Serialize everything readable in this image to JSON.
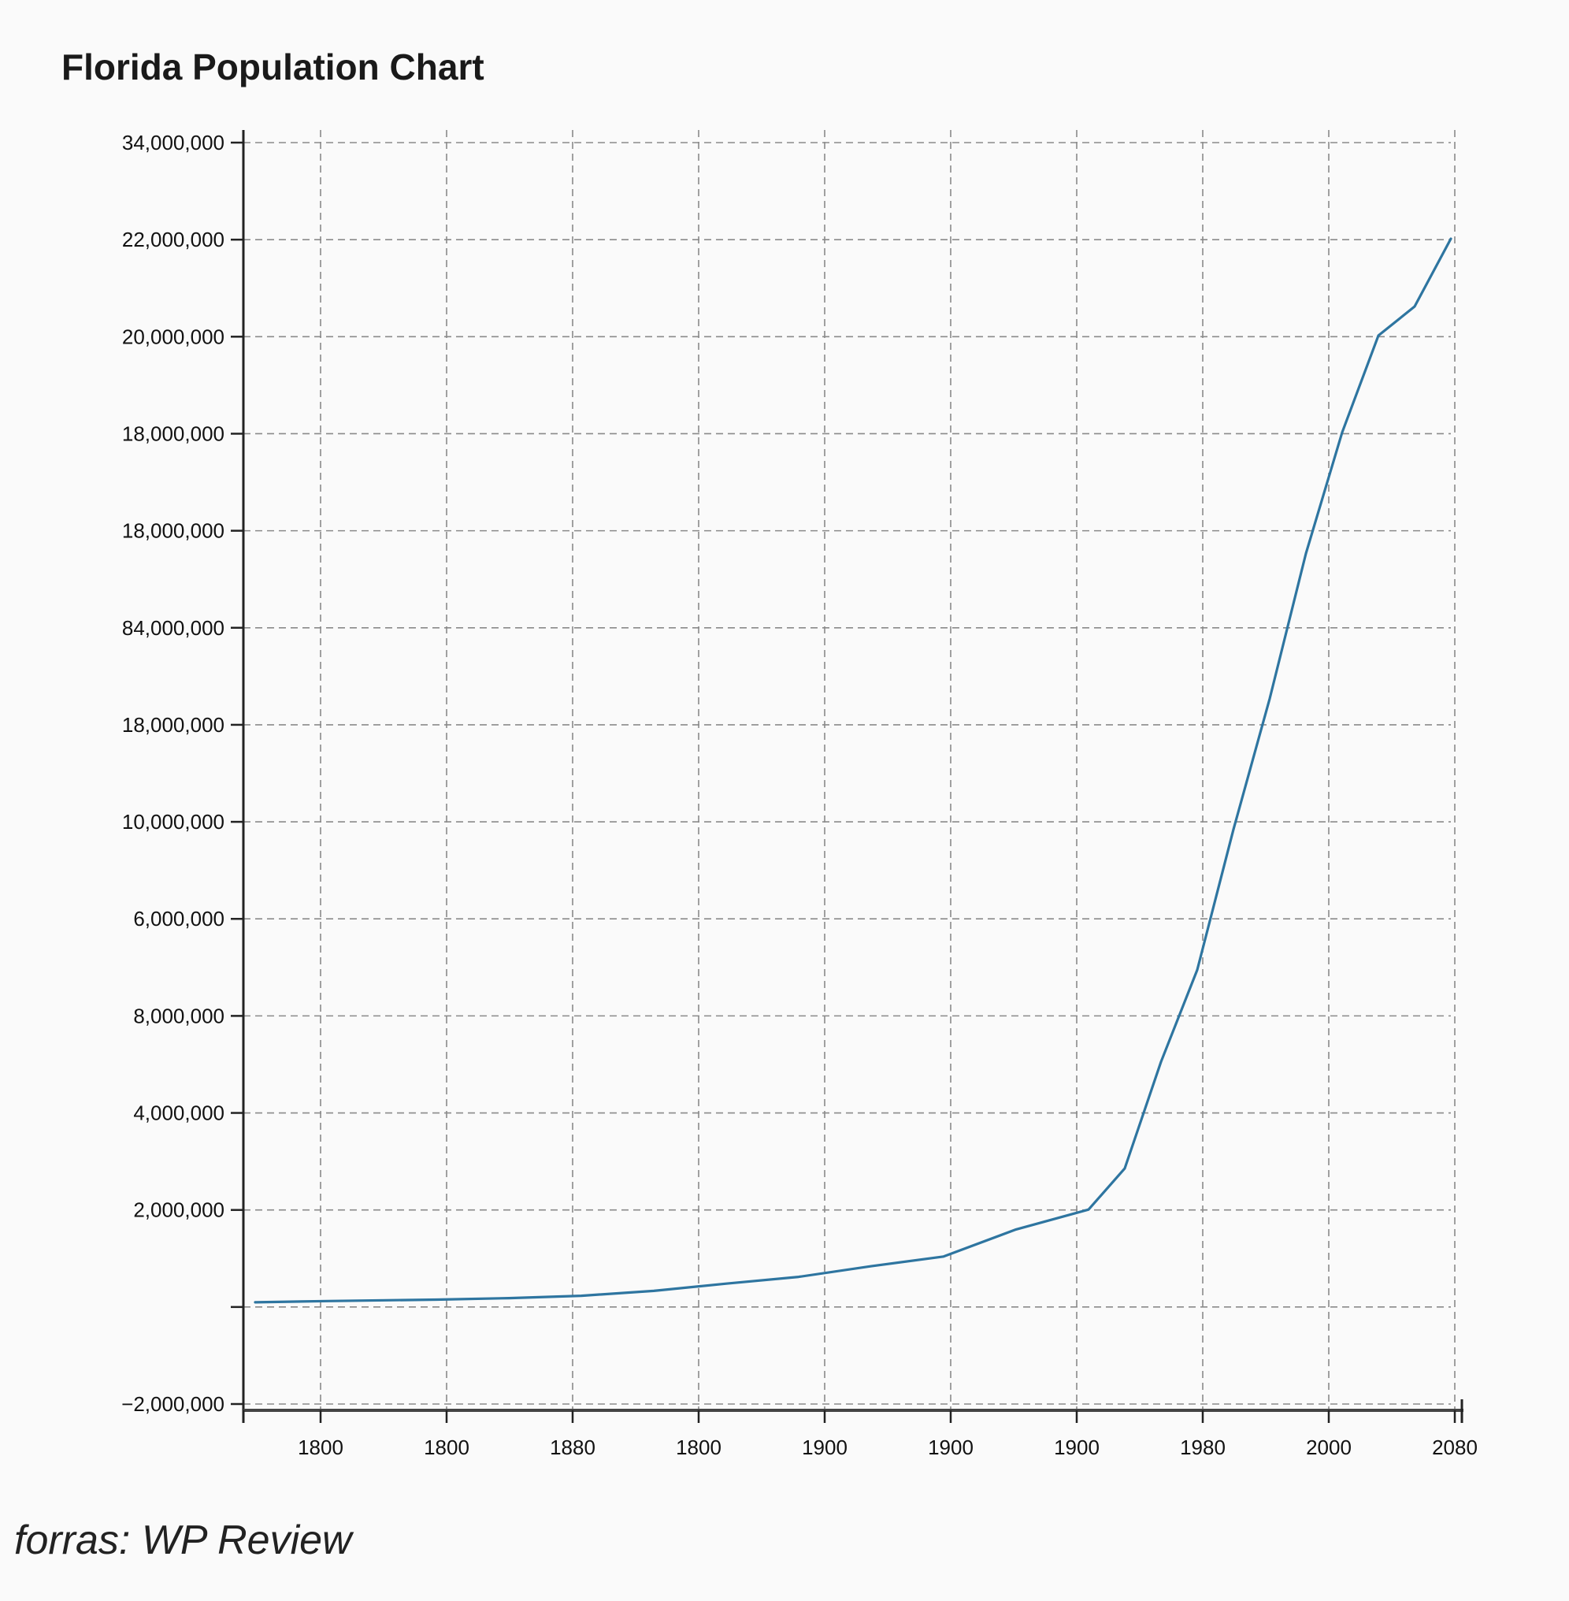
{
  "chart_data": {
    "type": "line",
    "title": "Florida Population Chart",
    "xlabel": "",
    "ylabel": "",
    "grid": true,
    "line_color": "#2e75a0",
    "grid_color": "#8a8a8a",
    "y_tick_labels": [
      "34,000,000",
      "22,000,000",
      "20,000,000",
      "18,000,000",
      "18,000,000",
      "84,000,000",
      "18,000,000",
      "10,000,000",
      "6,000,000",
      "8,000,000",
      "4,000,000",
      "2,000,000",
      "",
      "−2,000,000"
    ],
    "x_tick_labels": [
      "1800",
      "1800",
      "1880",
      "1800",
      "1900",
      "1900",
      "1900",
      "1980",
      "2000",
      "2080"
    ],
    "series": [
      {
        "values": [
          {
            "x": 1780,
            "y": 34000
          },
          {
            "x": 1800,
            "y": 60000
          },
          {
            "x": 1830,
            "y": 90000
          },
          {
            "x": 1850,
            "y": 120000
          },
          {
            "x": 1870,
            "y": 170000
          },
          {
            "x": 1890,
            "y": 270000
          },
          {
            "x": 1910,
            "y": 420000
          },
          {
            "x": 1930,
            "y": 560000
          },
          {
            "x": 1950,
            "y": 780000
          },
          {
            "x": 1970,
            "y": 980000
          },
          {
            "x": 1990,
            "y": 1540000
          },
          {
            "x": 2010,
            "y": 1950000
          },
          {
            "x": 2020,
            "y": 2800000
          },
          {
            "x": 2030,
            "y": 5000000
          },
          {
            "x": 2040,
            "y": 6900000
          },
          {
            "x": 2050,
            "y": 9800000
          },
          {
            "x": 2060,
            "y": 12500000
          },
          {
            "x": 2070,
            "y": 15500000
          },
          {
            "x": 2080,
            "y": 18000000
          },
          {
            "x": 2090,
            "y": 20000000
          },
          {
            "x": 2100,
            "y": 20600000
          },
          {
            "x": 2110,
            "y": 22000000
          }
        ]
      }
    ]
  },
  "source_text": "forras: WP Review"
}
